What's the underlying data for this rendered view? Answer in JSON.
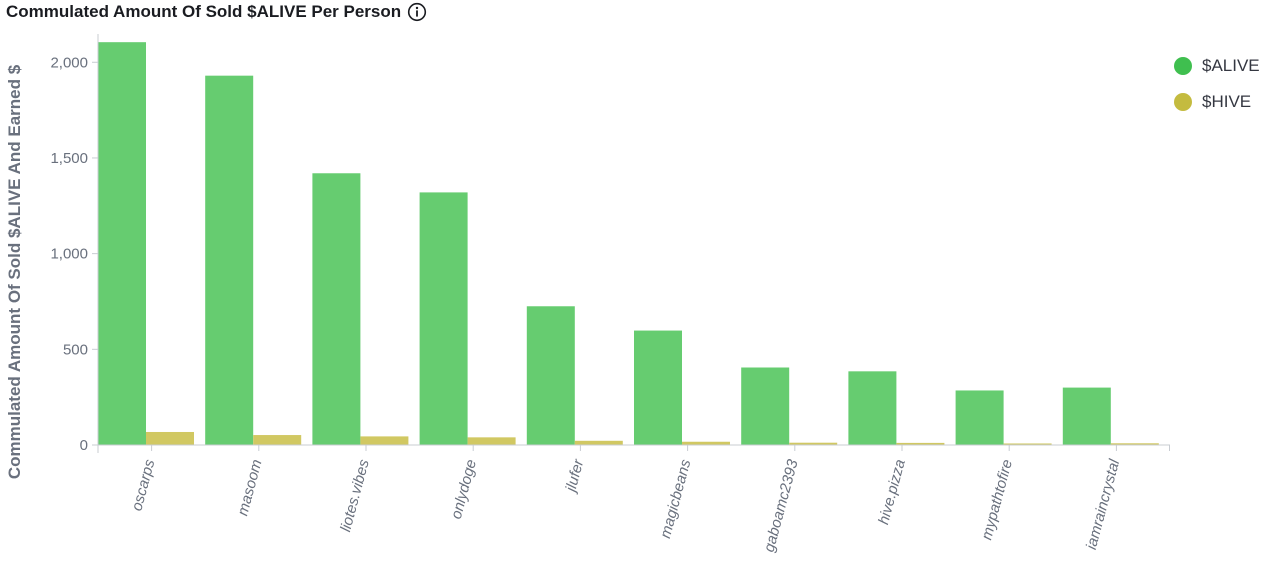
{
  "title": "Commulated Amount Of Sold $ALIVE Per Person",
  "icons": {
    "info": "info-icon"
  },
  "colors": {
    "alive": "#66cc70",
    "hive": "#d1c862",
    "alive_legend": "#3fbf4f",
    "hive_legend": "#c4bb3f",
    "axis": "#c8ccd2",
    "tick_text": "#69707d",
    "title_text": "#1a1c21"
  },
  "chart_data": {
    "type": "bar",
    "title": "Commulated Amount Of Sold $ALIVE Per Person",
    "xlabel": "",
    "ylabel": "Commulated Amount Of Sold $ALIVE And Earned $",
    "ylim": [
      0,
      2200
    ],
    "yticks": [
      0,
      500,
      1000,
      1500,
      2000
    ],
    "ytick_labels": [
      "0",
      "500",
      "1,000",
      "1,500",
      "2,000"
    ],
    "grid": false,
    "legend_position": "top-right",
    "categories": [
      "oscarps",
      "masoom",
      "liotes.vibes",
      "onlydoge",
      "jlufer",
      "magicbeans",
      "gaboamc2393",
      "hive.pizza",
      "mypathtofire",
      "iamraincrystal"
    ],
    "series": [
      {
        "name": "$ALIVE",
        "values": [
          2105,
          1930,
          1420,
          1320,
          725,
          598,
          405,
          385,
          285,
          300
        ]
      },
      {
        "name": "$HIVE",
        "values": [
          68,
          52,
          45,
          40,
          22,
          17,
          12,
          11,
          8,
          9
        ]
      }
    ]
  }
}
